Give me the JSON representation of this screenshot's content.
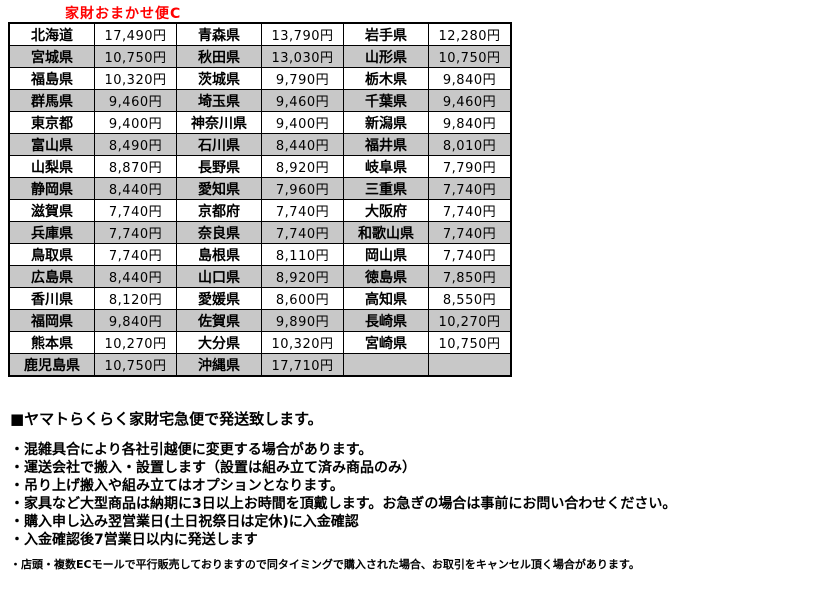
{
  "title": "家財おまかせ便C",
  "colors": {
    "title_red": "#ff0000",
    "row_alt_gray": "#c8c8c8",
    "border_black": "#000000"
  },
  "table": {
    "columns": [
      "prefecture",
      "price",
      "prefecture",
      "price",
      "prefecture",
      "price"
    ],
    "rows": [
      [
        "北海道",
        "17,490円",
        "青森県",
        "13,790円",
        "岩手県",
        "12,280円"
      ],
      [
        "宮城県",
        "10,750円",
        "秋田県",
        "13,030円",
        "山形県",
        "10,750円"
      ],
      [
        "福島県",
        "10,320円",
        "茨城県",
        "9,790円",
        "栃木県",
        "9,840円"
      ],
      [
        "群馬県",
        "9,460円",
        "埼玉県",
        "9,460円",
        "千葉県",
        "9,460円"
      ],
      [
        "東京都",
        "9,400円",
        "神奈川県",
        "9,400円",
        "新潟県",
        "9,840円"
      ],
      [
        "富山県",
        "8,490円",
        "石川県",
        "8,440円",
        "福井県",
        "8,010円"
      ],
      [
        "山梨県",
        "8,870円",
        "長野県",
        "8,920円",
        "岐阜県",
        "7,790円"
      ],
      [
        "静岡県",
        "8,440円",
        "愛知県",
        "7,960円",
        "三重県",
        "7,740円"
      ],
      [
        "滋賀県",
        "7,740円",
        "京都府",
        "7,740円",
        "大阪府",
        "7,740円"
      ],
      [
        "兵庫県",
        "7,740円",
        "奈良県",
        "7,740円",
        "和歌山県",
        "7,740円"
      ],
      [
        "鳥取県",
        "7,740円",
        "島根県",
        "8,110円",
        "岡山県",
        "7,740円"
      ],
      [
        "広島県",
        "8,440円",
        "山口県",
        "8,920円",
        "徳島県",
        "7,850円"
      ],
      [
        "香川県",
        "8,120円",
        "愛媛県",
        "8,600円",
        "高知県",
        "8,550円"
      ],
      [
        "福岡県",
        "9,840円",
        "佐賀県",
        "9,890円",
        "長崎県",
        "10,270円"
      ],
      [
        "熊本県",
        "10,270円",
        "大分県",
        "10,320円",
        "宮崎県",
        "10,750円"
      ],
      [
        "鹿児島県",
        "10,750円",
        "沖縄県",
        "17,710円",
        "",
        ""
      ]
    ]
  },
  "notes": {
    "heading": "■ヤマトらくらく家財宅急便で発送致します。",
    "bullets": [
      "・混雑具合により各社引越便に変更する場合があります。",
      "・運送会社で搬入・設置します（設置は組み立て済み商品のみ）",
      "・吊り上げ搬入や組み立てはオプションとなります。",
      "・家具など大型商品は納期に3日以上お時間を頂戴します。お急ぎの場合は事前にお問い合わせください。",
      "・購入申し込み翌営業日(土日祝祭日は定休)に入金確認",
      "・入金確認後7営業日以内に発送します"
    ],
    "footnote": "・店頭・複数ECモールで平行販売しておりますので同タイミングで購入された場合、お取引をキャンセル頂く場合があります。"
  }
}
